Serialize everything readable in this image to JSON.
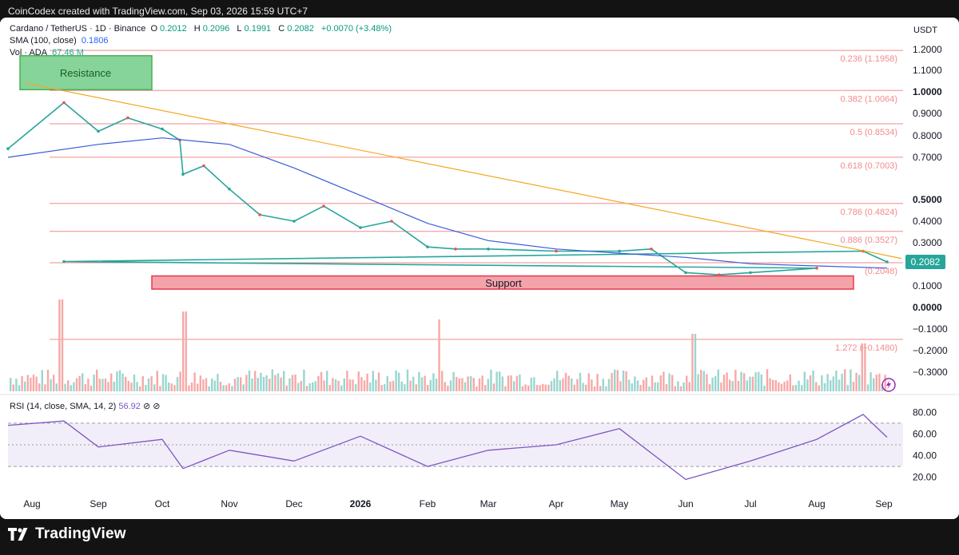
{
  "header_text": "CoinCodex created with TradingView.com, Sep 03, 2026 15:59 UTC+7",
  "brand": "TradingView",
  "legend": {
    "symbol": "Cardano / TetherUS · 1D · Binance",
    "o_label": "O",
    "o": "0.2012",
    "h_label": "H",
    "h": "0.2096",
    "l_label": "L",
    "l": "0.1991",
    "c_label": "C",
    "c": "0.2082",
    "change": "+0.0070 (+3.48%)",
    "sma_label": "SMA (100, close)",
    "sma_value": "0.1806",
    "vol_label": "Vol · ADA",
    "vol_value": "67.46 M"
  },
  "rsi_legend": {
    "label": "RSI (14, close, SMA, 14, 2)",
    "value": "56.92"
  },
  "colors": {
    "up": "#26a69a",
    "down": "#ef5350",
    "sma": "#3b5bdb",
    "trendline": "#f5a623",
    "fib": "#f28b8b",
    "rsi": "#7e57c2",
    "resistance_fill": "#86d49a",
    "support_fill": "#f5a3aa"
  },
  "chart_data": {
    "type": "line",
    "title": "Cardano / TetherUS · 1D · Binance",
    "price_unit": "USDT",
    "x_labels": [
      "Aug",
      "Sep",
      "Oct",
      "Nov",
      "Dec",
      "2026",
      "Feb",
      "Mar",
      "Apr",
      "May",
      "Jun",
      "Jul",
      "Aug",
      "Sep"
    ],
    "y_ticks": [
      "1.2000",
      "1.1000",
      "1.0000",
      "0.9000",
      "0.8000",
      "0.7000",
      "0.5000",
      "0.4000",
      "0.3000",
      "0.1000",
      "0.0000",
      "−0.1000",
      "−0.2000",
      "−0.3000"
    ],
    "current_price": "0.2082",
    "series": [
      {
        "name": "Cardano / TetherUS",
        "x": [
          "Aug",
          "Aug 15",
          "Sep",
          "Sep 15",
          "Oct",
          "Oct 10",
          "Oct 11",
          "Oct 20",
          "Nov",
          "Nov 15",
          "Dec",
          "Dec 15",
          "2026",
          "Jan 15",
          "Feb",
          "Feb 15",
          "Mar",
          "Apr",
          "May",
          "May 15",
          "Jun",
          "Jun 15",
          "Jul",
          "Aug",
          "Aug 15",
          "Aug 22",
          "Sep"
        ],
        "values": [
          0.74,
          0.95,
          0.82,
          0.88,
          0.83,
          0.78,
          0.62,
          0.66,
          0.55,
          0.43,
          0.4,
          0.47,
          0.37,
          0.4,
          0.28,
          0.27,
          0.27,
          0.26,
          0.26,
          0.27,
          0.16,
          0.15,
          0.16,
          0.18,
          0.21,
          0.26,
          0.2082
        ]
      },
      {
        "name": "SMA (100, close)",
        "x": [
          "Aug",
          "Sep",
          "Oct",
          "Nov",
          "Dec",
          "2026",
          "Feb",
          "Mar",
          "Apr",
          "May",
          "Jun",
          "Jul",
          "Aug",
          "Sep"
        ],
        "values": [
          0.7,
          0.76,
          0.79,
          0.76,
          0.65,
          0.52,
          0.39,
          0.31,
          0.27,
          0.25,
          0.23,
          0.2,
          0.19,
          0.1806
        ]
      }
    ],
    "fib_levels": [
      {
        "label": "0.236 (1.1958)",
        "value": 1.1958
      },
      {
        "label": "0.382 (1.0064)",
        "value": 1.0064
      },
      {
        "label": "0.5 (0.8534)",
        "value": 0.8534
      },
      {
        "label": "0.618 (0.7003)",
        "value": 0.7003
      },
      {
        "label": "0.786 (0.4824)",
        "value": 0.4824
      },
      {
        "label": "0.886 (0.3527)",
        "value": 0.3527
      },
      {
        "label": "(0.2048)",
        "value": 0.2048
      },
      {
        "label": "1.272 (−0.1480)",
        "value": -0.148
      }
    ],
    "zones": [
      {
        "label": "Resistance",
        "low": 1.01,
        "high": 1.17,
        "from": "Aug",
        "to": "Aug 20"
      },
      {
        "label": "Support",
        "low": 0.085,
        "high": 0.145,
        "from": "Sep 25",
        "to": "Aug 20"
      }
    ],
    "trendline": {
      "from": {
        "x": "Aug",
        "y": 1.04
      },
      "to": {
        "x": "Sep",
        "y": 0.225
      }
    },
    "rsi": {
      "y_ticks": [
        "80.00",
        "60.00",
        "40.00",
        "20.00"
      ],
      "band": [
        30,
        70
      ],
      "x": [
        "Aug",
        "Aug 15",
        "Sep",
        "Oct",
        "Oct 11",
        "Nov",
        "Dec",
        "2026",
        "Feb",
        "Mar",
        "Apr",
        "May",
        "Jun",
        "Jul",
        "Aug",
        "Aug 22",
        "Sep"
      ],
      "values": [
        68,
        72,
        48,
        55,
        28,
        45,
        35,
        58,
        30,
        45,
        50,
        65,
        18,
        35,
        55,
        78,
        56.92
      ]
    },
    "grid": false,
    "legend_position": "top-left"
  }
}
